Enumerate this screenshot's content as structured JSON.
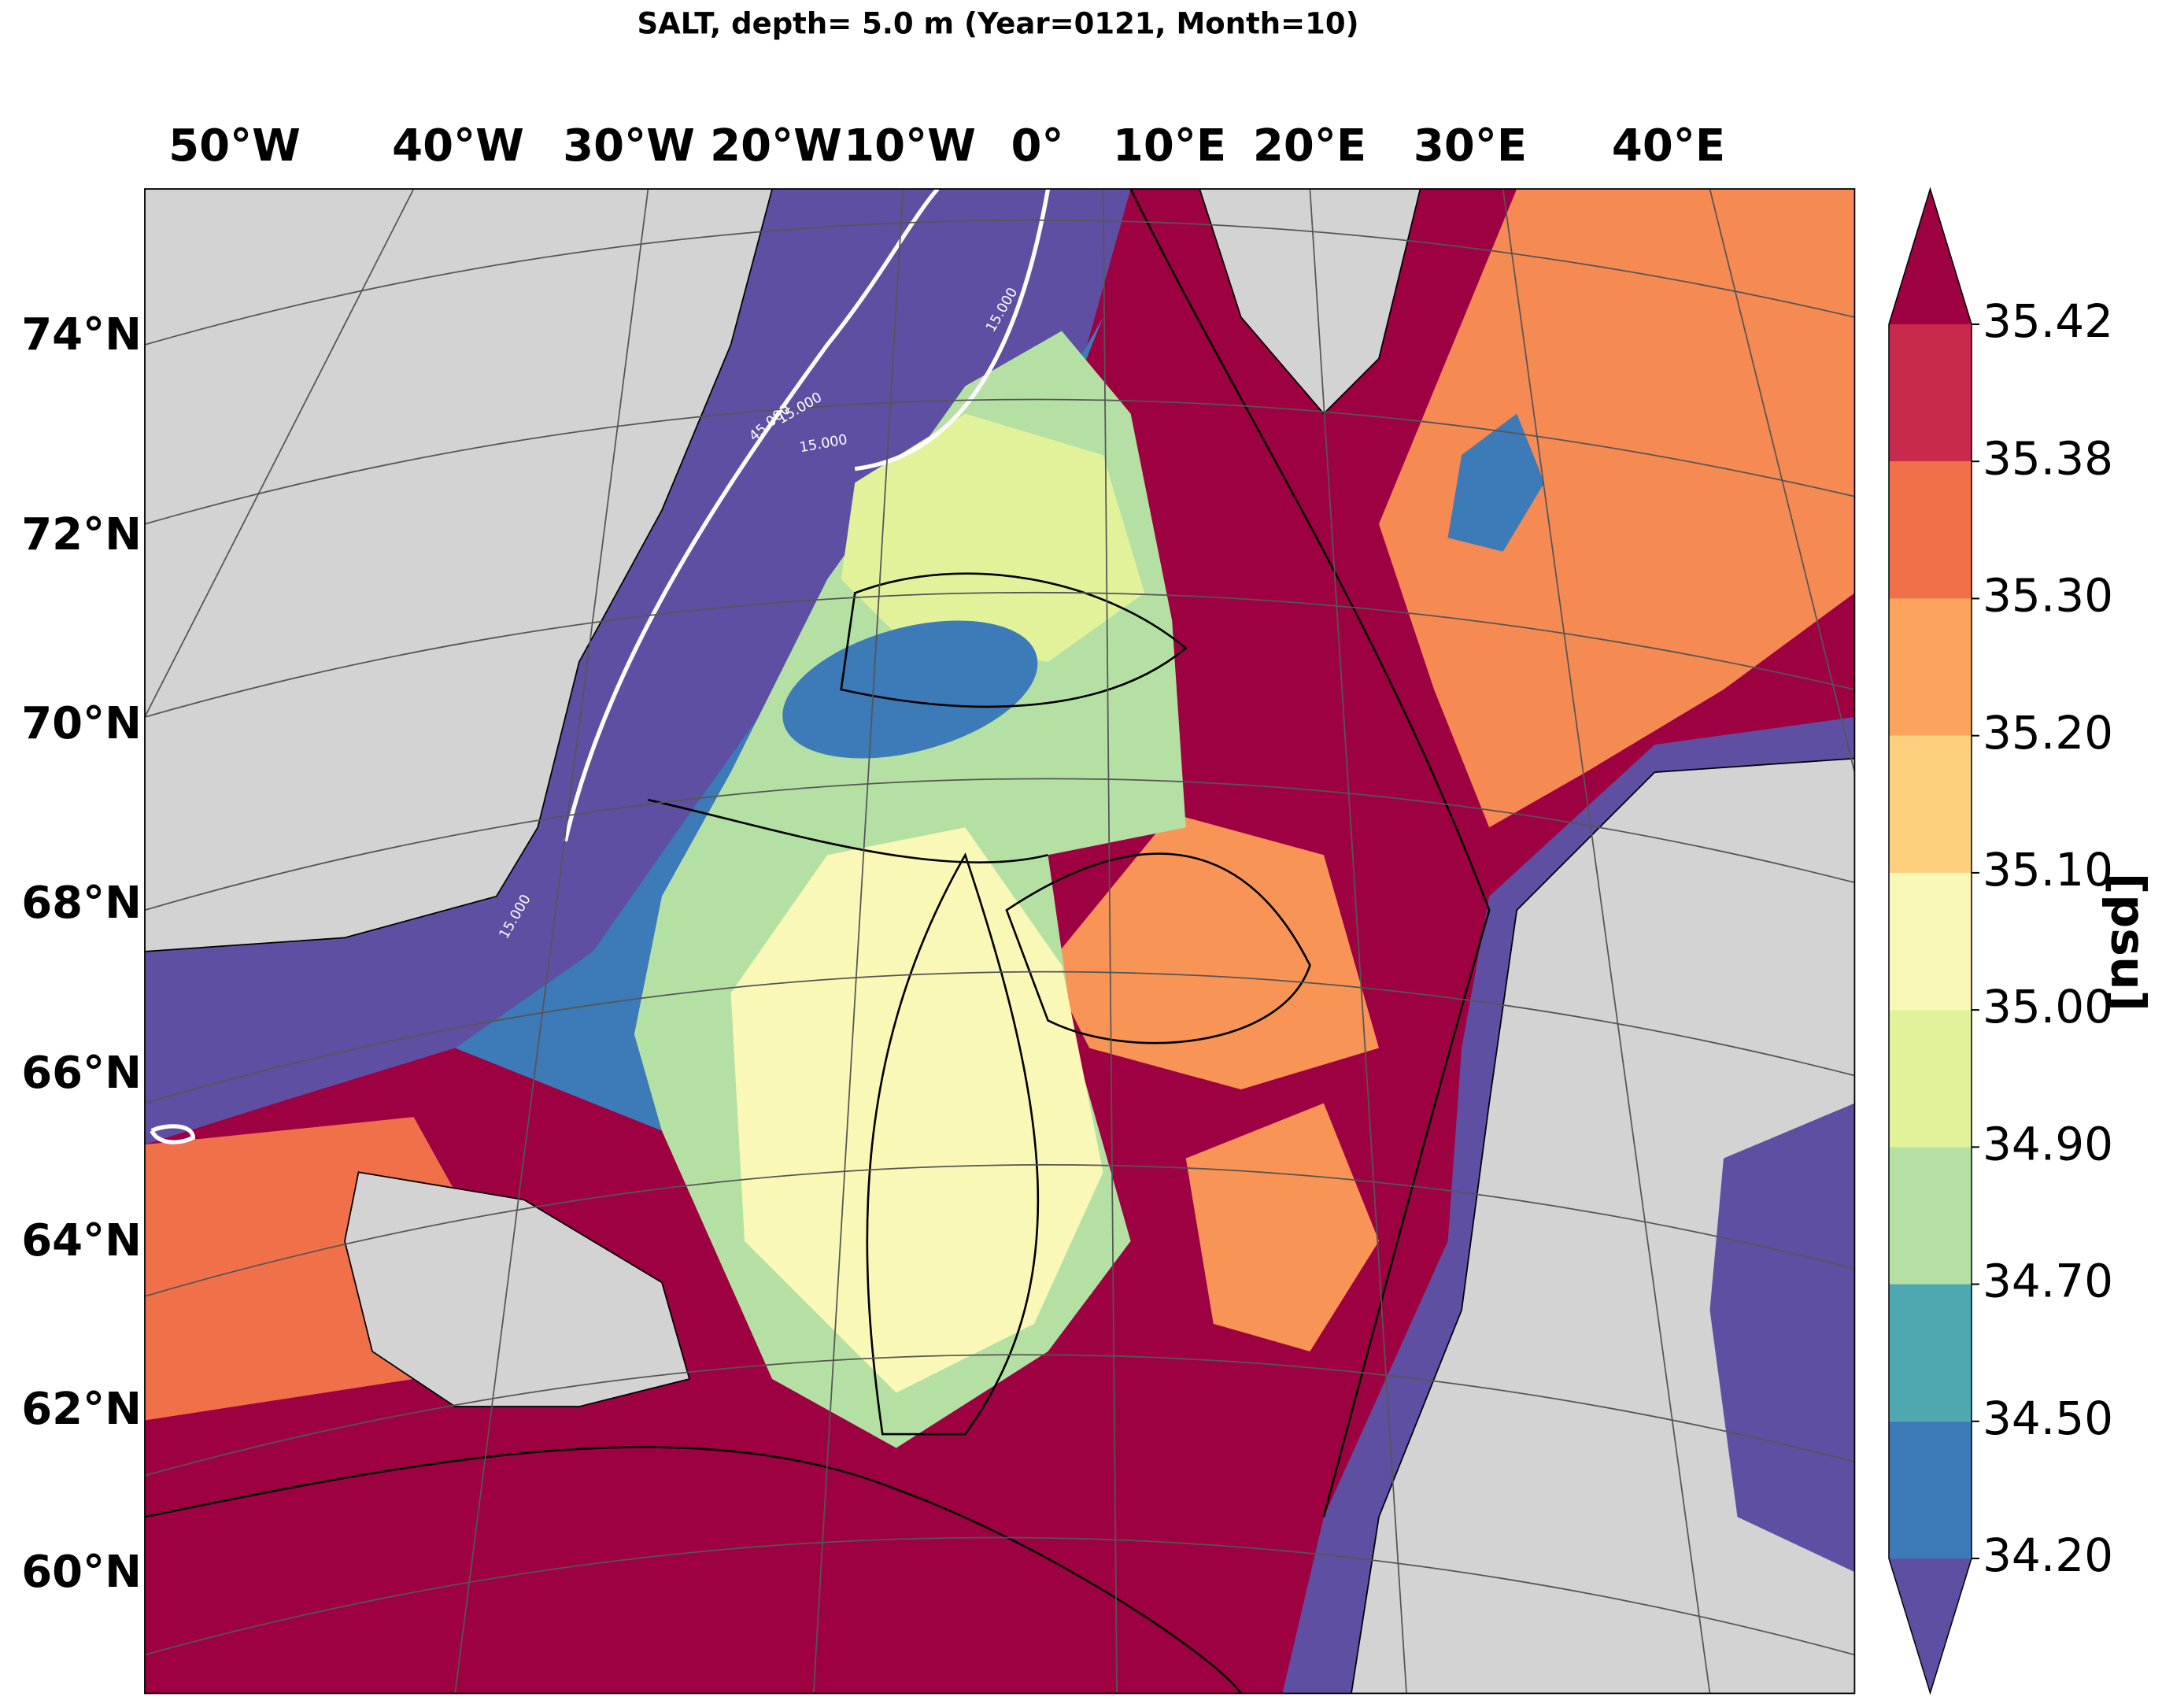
{
  "title": "SALT, depth=  5.0 m (Year=0121, Month=10)",
  "lon_labels": [
    "50°W",
    "40°W",
    "30°W",
    "20°W",
    "10°W",
    "0°",
    "10°E",
    "20°E",
    "30°E",
    "40°E"
  ],
  "lat_labels": [
    "74°N",
    "72°N",
    "70°N",
    "68°N",
    "66°N",
    "64°N",
    "62°N",
    "60°N"
  ],
  "contour_labels": [
    "15.000",
    "45.000",
    "15.000",
    "15.000",
    "15.000"
  ],
  "colorbar": {
    "label": "[psu]",
    "ticks": [
      {
        "value": 34.2,
        "label": "34.20"
      },
      {
        "value": 34.5,
        "label": "34.50"
      },
      {
        "value": 34.7,
        "label": "34.70"
      },
      {
        "value": 34.9,
        "label": "34.90"
      },
      {
        "value": 35,
        "label": "35.00"
      },
      {
        "value": 35.1,
        "label": "35.10"
      },
      {
        "value": 35.2,
        "label": "35.20"
      },
      {
        "value": 35.3,
        "label": "35.30"
      },
      35.38,
      35.42
    ],
    "colors": [
      "#3d7ab8",
      "#4ea8b0",
      "#b5e0a4",
      "#e2f29b",
      "#faf8b6",
      "#fdd07e",
      "#fba45e",
      "#f0704a",
      "#c72a4d"
    ],
    "under_color": "#5e4fa2",
    "over_color": "#9e0142"
  }
}
